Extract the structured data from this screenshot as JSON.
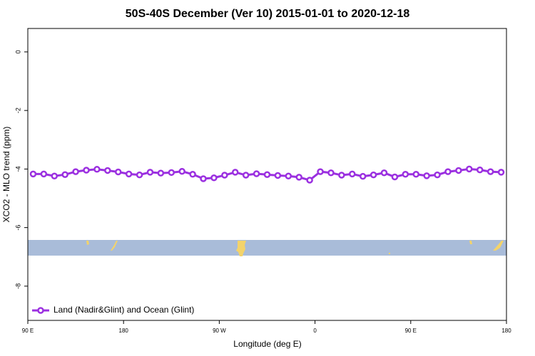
{
  "chart_data": {
    "type": "line",
    "title": "50S-40S December (Ver 10)   2015-01-01 to 2020-12-18",
    "xlabel": "Longitude (deg E)",
    "ylabel": "XCO2 - MLO trend (ppm)",
    "x": [
      95,
      105,
      115,
      125,
      135,
      145,
      155,
      165,
      175,
      185,
      195,
      205,
      215,
      225,
      235,
      245,
      255,
      265,
      275,
      285,
      295,
      305,
      315,
      325,
      335,
      345,
      355,
      365,
      375,
      385,
      395,
      405,
      415,
      425,
      435,
      445,
      455,
      465,
      475,
      485,
      495,
      505,
      515,
      525,
      535
    ],
    "series": [
      {
        "name": "Land (Nadir&Glint) and Ocean (Glint)",
        "color": "#9b30e0",
        "values": [
          -4.17,
          -4.17,
          -4.24,
          -4.19,
          -4.09,
          -4.04,
          -4.01,
          -4.05,
          -4.1,
          -4.17,
          -4.2,
          -4.11,
          -4.14,
          -4.12,
          -4.08,
          -4.18,
          -4.33,
          -4.3,
          -4.21,
          -4.11,
          -4.21,
          -4.16,
          -4.19,
          -4.22,
          -4.24,
          -4.28,
          -4.38,
          -4.09,
          -4.13,
          -4.21,
          -4.17,
          -4.25,
          -4.2,
          -4.13,
          -4.27,
          -4.18,
          -4.18,
          -4.23,
          -4.2,
          -4.09,
          -4.05,
          -4.0,
          -4.03,
          -4.09,
          -4.11
        ]
      }
    ],
    "xlim": [
      90,
      540
    ],
    "xticks": [
      {
        "value": 90,
        "label": "90 E"
      },
      180,
      {
        "value": 270,
        "label": "90 W"
      },
      {
        "value": 360,
        "label": "0"
      },
      {
        "value": 450,
        "label": "90 E"
      },
      {
        "value": 540,
        "label": "180"
      }
    ],
    "ylim": [
      -9.17,
      0.8
    ],
    "yticks": [
      0,
      -2,
      -4,
      -6,
      -8
    ],
    "legend": "bottom-left"
  }
}
